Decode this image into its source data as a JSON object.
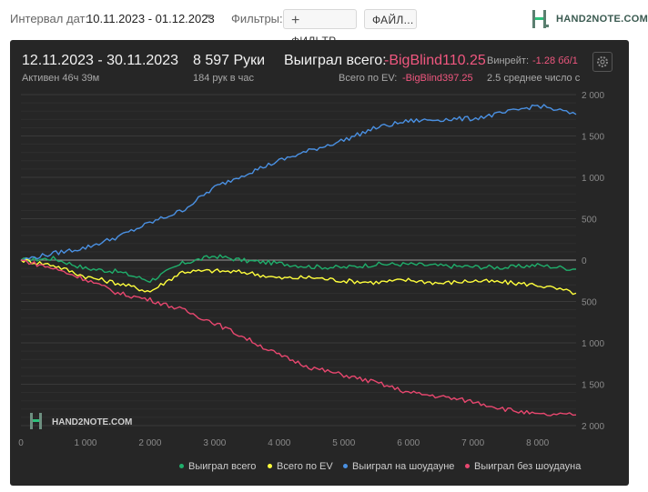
{
  "toolbar": {
    "date_interval_label": "Интервал дат:",
    "date_range": "10.11.2023 - 01.12.2023",
    "filters_label": "Фильтры:",
    "filter_button": "ФИЛЬТР...",
    "file_button": "ФАЙЛ...",
    "logo_text": "HAND2NOTE.COM"
  },
  "summary": {
    "period": "12.11.2023 - 30.11.2023",
    "active": "Активен 46ч 39м",
    "hands": "8 597 Руки",
    "hands_per_hour": "184 рук в час",
    "won_label": "Выиграл всего:",
    "won_value": "-BigBlind110.25",
    "ev_label": "Всего по EV:",
    "ev_value": "-BigBlind397.25",
    "winrate_label": "Винрейт:",
    "winrate_value": "-1.28 бб/1",
    "avg_text": "2.5 среднее число с"
  },
  "colors": {
    "won": "#1fae6b",
    "ev": "#ffff3c",
    "showdown": "#4a90e2",
    "non_showdown": "#e8476f",
    "panel": "#262626"
  },
  "watermark": "HAND2NOTE.COM",
  "chart_data": {
    "type": "line",
    "x_ticks": [
      "0",
      "1 000",
      "2 000",
      "3 000",
      "4 000",
      "5 000",
      "6 000",
      "7 000",
      "8 000"
    ],
    "y_ticks": [
      "2 000",
      "1 500",
      "1 000",
      "500",
      "0",
      "500",
      "1 000",
      "1 500",
      "2 000"
    ],
    "xlim": [
      0,
      8597
    ],
    "ylim": [
      -2000,
      2000
    ],
    "grid": true,
    "legend_position": "bottom-right",
    "series": [
      {
        "name": "Выиграл всего",
        "color": "#1fae6b",
        "x": [
          0,
          500,
          1000,
          1500,
          2000,
          2500,
          3000,
          3500,
          4000,
          4500,
          5000,
          5500,
          6000,
          6500,
          7000,
          7500,
          8000,
          8597
        ],
        "y": [
          0,
          20,
          -100,
          -140,
          -250,
          -40,
          50,
          -10,
          -40,
          -80,
          -90,
          -50,
          -50,
          -70,
          -80,
          -90,
          -60,
          -110
        ]
      },
      {
        "name": "Всего по EV",
        "color": "#ffff3c",
        "x": [
          0,
          500,
          1000,
          1500,
          2000,
          2500,
          3000,
          3500,
          4000,
          4500,
          5000,
          5500,
          6000,
          6500,
          7000,
          7500,
          8000,
          8597
        ],
        "y": [
          0,
          -60,
          -200,
          -280,
          -380,
          -140,
          -130,
          -150,
          -220,
          -210,
          -250,
          -270,
          -240,
          -280,
          -250,
          -270,
          -300,
          -400
        ]
      },
      {
        "name": "Выиграл на шоудауне",
        "color": "#4a90e2",
        "x": [
          0,
          500,
          1000,
          1500,
          2000,
          2500,
          3000,
          3500,
          4000,
          4500,
          5000,
          5500,
          6000,
          6500,
          7000,
          7500,
          8000,
          8597
        ],
        "y": [
          0,
          80,
          150,
          280,
          450,
          600,
          880,
          1050,
          1200,
          1330,
          1450,
          1600,
          1680,
          1700,
          1710,
          1780,
          1870,
          1760
        ]
      },
      {
        "name": "Выиграл без шоудауна",
        "color": "#e8476f",
        "x": [
          0,
          500,
          1000,
          1500,
          2000,
          2500,
          3000,
          3500,
          4000,
          4500,
          5000,
          5500,
          6000,
          6500,
          7000,
          7500,
          8000,
          8597
        ],
        "y": [
          0,
          -100,
          -230,
          -400,
          -480,
          -600,
          -760,
          -950,
          -1150,
          -1300,
          -1390,
          -1480,
          -1600,
          -1650,
          -1710,
          -1800,
          -1870,
          -1870
        ]
      }
    ]
  }
}
